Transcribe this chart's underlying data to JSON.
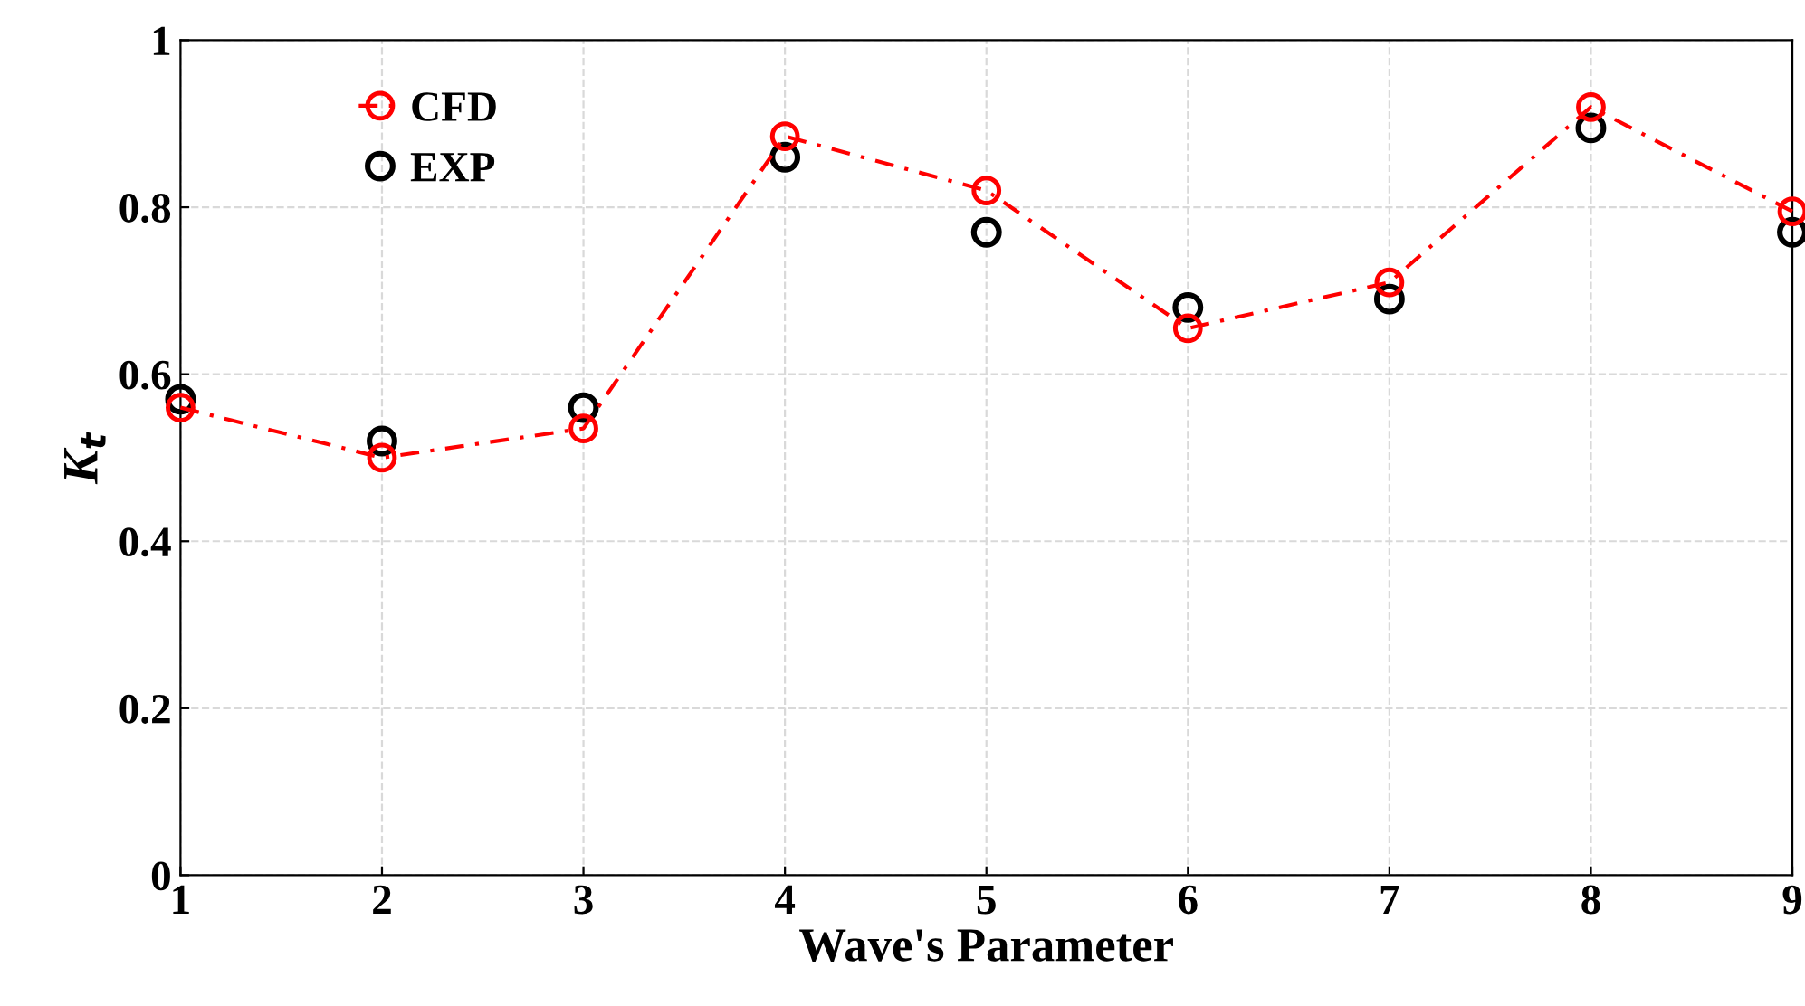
{
  "chart_data": {
    "type": "line",
    "xlabel": "Wave's Parameter",
    "ylabel": "K$_{t}$",
    "x": [
      1,
      2,
      3,
      4,
      5,
      6,
      7,
      8,
      9
    ],
    "series": [
      {
        "name": "CFD",
        "color": "#ff0000",
        "marker": "circle",
        "line_style": "dashed",
        "values": [
          0.56,
          0.5,
          0.535,
          0.885,
          0.82,
          0.655,
          0.71,
          0.92,
          0.795
        ]
      },
      {
        "name": "EXP",
        "type": "scatter",
        "color": "#000000",
        "marker": "circle",
        "values": [
          0.57,
          0.52,
          0.56,
          0.86,
          0.77,
          0.68,
          0.69,
          0.895,
          0.77
        ]
      }
    ],
    "xlim": [
      1,
      9
    ],
    "xticks": [
      1,
      2,
      3,
      4,
      5,
      6,
      7,
      8,
      9
    ],
    "ylim": [
      0,
      1
    ],
    "yticks": [
      0,
      0.2,
      0.4,
      0.6,
      0.8,
      1
    ],
    "grid": true,
    "legend": "top left"
  }
}
